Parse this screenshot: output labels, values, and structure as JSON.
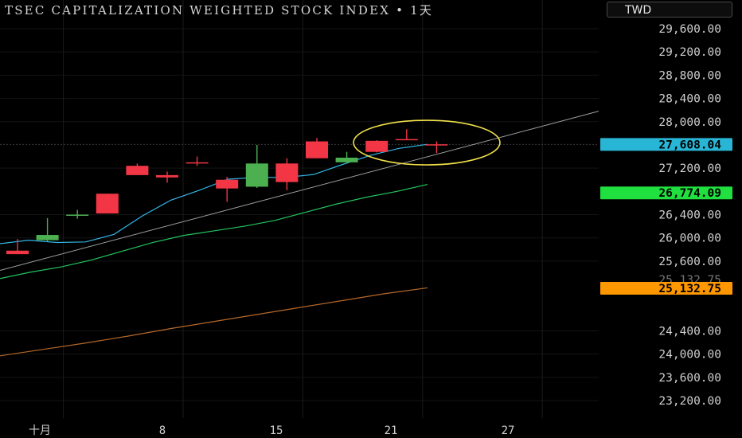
{
  "header": {
    "title": "TSEC CAPITALIZATION WEIGHTED STOCK INDEX  •  1天",
    "currency": "TWD"
  },
  "colors": {
    "up": "#f23645",
    "down": "#4caf50",
    "ma_short": "#33b5e5",
    "ma_mid": "#22c55e",
    "ma_long": "#b5682a",
    "trendline": "#9e9e9e",
    "ellipse": "#f0e04a",
    "badge_blue": "#29b6d6",
    "badge_green": "#20e040",
    "badge_orange": "#ff9800"
  },
  "chart_data": {
    "type": "candlestick",
    "y_ticks": [
      "29,600.00",
      "29,200.00",
      "28,800.00",
      "28,400.00",
      "28,000.00",
      "27,200.00",
      "26,400.00",
      "26,000.00",
      "25,600.00",
      "24,400.00",
      "24,000.00",
      "23,600.00",
      "23,200.00"
    ],
    "x_ticks": [
      "十月",
      "8",
      "15",
      "21",
      "27"
    ],
    "ylim": [
      22900,
      29800
    ],
    "candles": [
      {
        "o": 25780,
        "h": 25980,
        "l": 25720,
        "c": 25720,
        "color": "up"
      },
      {
        "o": 25960,
        "h": 26340,
        "l": 25940,
        "c": 26050,
        "color": "down"
      },
      {
        "o": 26380,
        "h": 26480,
        "l": 26330,
        "c": 26400,
        "color": "down"
      },
      {
        "o": 26420,
        "h": 26760,
        "l": 26420,
        "c": 26760,
        "color": "up"
      },
      {
        "o": 27080,
        "h": 27280,
        "l": 27080,
        "c": 27240,
        "color": "up"
      },
      {
        "o": 27040,
        "h": 27140,
        "l": 26950,
        "c": 27080,
        "color": "up"
      },
      {
        "o": 27280,
        "h": 27400,
        "l": 27240,
        "c": 27300,
        "color": "up"
      },
      {
        "o": 26850,
        "h": 27050,
        "l": 26620,
        "c": 27000,
        "color": "up"
      },
      {
        "o": 27280,
        "h": 27600,
        "l": 26860,
        "c": 26880,
        "color": "down"
      },
      {
        "o": 26960,
        "h": 27370,
        "l": 26820,
        "c": 27280,
        "color": "up"
      },
      {
        "o": 27370,
        "h": 27720,
        "l": 27370,
        "c": 27660,
        "color": "up"
      },
      {
        "o": 27380,
        "h": 27480,
        "l": 27280,
        "c": 27300,
        "color": "down"
      },
      {
        "o": 27480,
        "h": 27680,
        "l": 27470,
        "c": 27670,
        "color": "up"
      },
      {
        "o": 27700,
        "h": 27870,
        "l": 27690,
        "c": 27700,
        "color": "up"
      },
      {
        "o": 27610,
        "h": 27660,
        "l": 27460,
        "c": 27600,
        "color": "up"
      }
    ],
    "ma_short": [
      25900,
      25960,
      25920,
      25930,
      26060,
      26380,
      26650,
      26820,
      27010,
      27040,
      27040,
      27090,
      27260,
      27420,
      27540,
      27610
    ],
    "ma_mid": [
      25300,
      25410,
      25500,
      25620,
      25770,
      25920,
      26040,
      26120,
      26200,
      26300,
      26440,
      26580,
      26700,
      26800,
      26920
    ],
    "ma_long": [
      23970,
      24080,
      24190,
      24310,
      24440,
      24560,
      24680,
      24800,
      24920,
      25040,
      25140
    ],
    "current_price": "27,608.04",
    "ma_mid_label": "26,774.09",
    "ma_long_label": "25,132.75",
    "ma_long_hidden_label": "25,132.75"
  }
}
